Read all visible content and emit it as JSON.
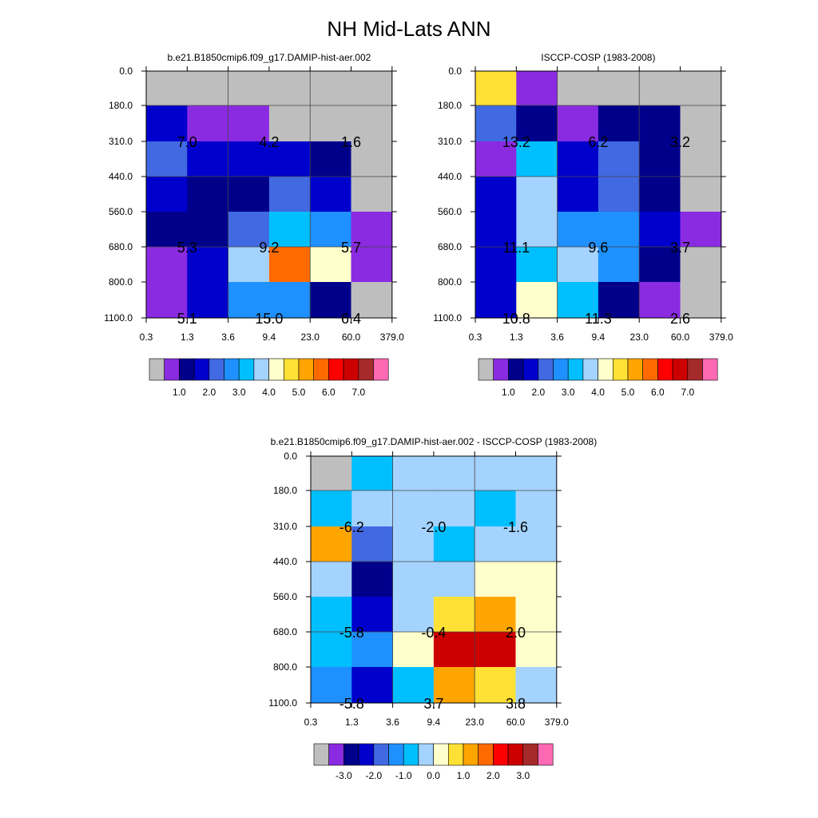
{
  "figure": {
    "title": "NH Mid-Lats ANN"
  },
  "chart_data": [
    {
      "type": "heatmap",
      "title": "b.e21.B1850cmip6.f09_g17.DAMIP-hist-aer.002",
      "x_ticks": [
        "0.3",
        "1.3",
        "3.6",
        "9.4",
        "23.0",
        "60.0",
        "379.0"
      ],
      "y_ticks": [
        "0.0",
        "180.0",
        "310.0",
        "440.0",
        "560.0",
        "680.0",
        "800.0",
        "1100.0"
      ],
      "cells": [
        [
          "#bebebe",
          "#bebebe",
          "#bebebe",
          "#bebebe",
          "#bebebe",
          "#bebebe"
        ],
        [
          "#0000cd",
          "#8a2be2",
          "#8a2be2",
          "#bebebe",
          "#bebebe",
          "#bebebe"
        ],
        [
          "#4169e1",
          "#0000cd",
          "#0000cd",
          "#0000cd",
          "#00008b",
          "#bebebe"
        ],
        [
          "#0000cd",
          "#00008b",
          "#00008b",
          "#4169e1",
          "#0000cd",
          "#bebebe"
        ],
        [
          "#00008b",
          "#00008b",
          "#4169e1",
          "#00bfff",
          "#1e90ff",
          "#8a2be2"
        ],
        [
          "#8a2be2",
          "#0000cd",
          "#a4d3ff",
          "#ff6a00",
          "#ffffcc",
          "#8a2be2"
        ],
        [
          "#8a2be2",
          "#0000cd",
          "#1e90ff",
          "#1e90ff",
          "#00008b",
          "#bebebe"
        ]
      ],
      "box_labels": [
        {
          "text": "7.0",
          "col": 0,
          "row": 1
        },
        {
          "text": "4.2",
          "col": 2,
          "row": 1
        },
        {
          "text": "1.6",
          "col": 4,
          "row": 1
        },
        {
          "text": "5.3",
          "col": 0,
          "row": 4
        },
        {
          "text": "9.2",
          "col": 2,
          "row": 4
        },
        {
          "text": "5.7",
          "col": 4,
          "row": 4
        },
        {
          "text": "5.1",
          "col": 0,
          "row": 6
        },
        {
          "text": "15.0",
          "col": 2,
          "row": 6
        },
        {
          "text": "6.4",
          "col": 4,
          "row": 6
        }
      ],
      "colorbar": {
        "colors": [
          "#bebebe",
          "#8a2be2",
          "#00008b",
          "#0000cd",
          "#4169e1",
          "#1e90ff",
          "#00bfff",
          "#a4d3ff",
          "#ffffcc",
          "#ffe135",
          "#ffa500",
          "#ff6a00",
          "#ff0000",
          "#cc0000",
          "#a52a2a",
          "#ff69b4"
        ],
        "labels": [
          "1.0",
          "2.0",
          "3.0",
          "4.0",
          "5.0",
          "6.0",
          "7.0"
        ],
        "label_boundaries": [
          2,
          4,
          6,
          8,
          10,
          12,
          14
        ]
      }
    },
    {
      "type": "heatmap",
      "title": "ISCCP-COSP (1983-2008)",
      "x_ticks": [
        "0.3",
        "1.3",
        "3.6",
        "9.4",
        "23.0",
        "60.0",
        "379.0"
      ],
      "y_ticks": [
        "0.0",
        "180.0",
        "310.0",
        "440.0",
        "560.0",
        "680.0",
        "800.0",
        "1100.0"
      ],
      "cells": [
        [
          "#ffe135",
          "#8a2be2",
          "#bebebe",
          "#bebebe",
          "#bebebe",
          "#bebebe"
        ],
        [
          "#4169e1",
          "#00008b",
          "#8a2be2",
          "#00008b",
          "#00008b",
          "#bebebe"
        ],
        [
          "#8a2be2",
          "#00bfff",
          "#0000cd",
          "#4169e1",
          "#00008b",
          "#bebebe"
        ],
        [
          "#0000cd",
          "#a4d3ff",
          "#0000cd",
          "#4169e1",
          "#00008b",
          "#bebebe"
        ],
        [
          "#0000cd",
          "#a4d3ff",
          "#1e90ff",
          "#1e90ff",
          "#0000cd",
          "#8a2be2"
        ],
        [
          "#0000cd",
          "#00bfff",
          "#a4d3ff",
          "#1e90ff",
          "#00008b",
          "#bebebe"
        ],
        [
          "#0000cd",
          "#ffffcc",
          "#00bfff",
          "#00008b",
          "#8a2be2",
          "#bebebe"
        ]
      ],
      "box_labels": [
        {
          "text": "13.2",
          "col": 0,
          "row": 1
        },
        {
          "text": "6.2",
          "col": 2,
          "row": 1
        },
        {
          "text": "3.2",
          "col": 4,
          "row": 1
        },
        {
          "text": "11.1",
          "col": 0,
          "row": 4
        },
        {
          "text": "9.6",
          "col": 2,
          "row": 4
        },
        {
          "text": "3.7",
          "col": 4,
          "row": 4
        },
        {
          "text": "10.8",
          "col": 0,
          "row": 6
        },
        {
          "text": "11.3",
          "col": 2,
          "row": 6
        },
        {
          "text": "2.6",
          "col": 4,
          "row": 6
        }
      ],
      "colorbar": {
        "colors": [
          "#bebebe",
          "#8a2be2",
          "#00008b",
          "#0000cd",
          "#4169e1",
          "#1e90ff",
          "#00bfff",
          "#a4d3ff",
          "#ffffcc",
          "#ffe135",
          "#ffa500",
          "#ff6a00",
          "#ff0000",
          "#cc0000",
          "#a52a2a",
          "#ff69b4"
        ],
        "labels": [
          "1.0",
          "2.0",
          "3.0",
          "4.0",
          "5.0",
          "6.0",
          "7.0"
        ],
        "label_boundaries": [
          2,
          4,
          6,
          8,
          10,
          12,
          14
        ]
      }
    },
    {
      "type": "heatmap",
      "title": "b.e21.B1850cmip6.f09_g17.DAMIP-hist-aer.002 - ISCCP-COSP (1983-2008)",
      "x_ticks": [
        "0.3",
        "1.3",
        "3.6",
        "9.4",
        "23.0",
        "60.0",
        "379.0"
      ],
      "y_ticks": [
        "0.0",
        "180.0",
        "310.0",
        "440.0",
        "560.0",
        "680.0",
        "800.0",
        "1100.0"
      ],
      "cells": [
        [
          "#bebebe",
          "#00bfff",
          "#a4d3ff",
          "#a4d3ff",
          "#a4d3ff",
          "#a4d3ff"
        ],
        [
          "#00bfff",
          "#a4d3ff",
          "#a4d3ff",
          "#a4d3ff",
          "#00bfff",
          "#a4d3ff"
        ],
        [
          "#ffa500",
          "#4169e1",
          "#a4d3ff",
          "#00bfff",
          "#a4d3ff",
          "#a4d3ff"
        ],
        [
          "#a4d3ff",
          "#00008b",
          "#a4d3ff",
          "#a4d3ff",
          "#ffffcc",
          "#ffffcc"
        ],
        [
          "#00bfff",
          "#0000cd",
          "#a4d3ff",
          "#ffe135",
          "#ffa500",
          "#ffffcc"
        ],
        [
          "#00bfff",
          "#1e90ff",
          "#ffffcc",
          "#cc0000",
          "#cc0000",
          "#ffffcc"
        ],
        [
          "#1e90ff",
          "#0000cd",
          "#00bfff",
          "#ffa500",
          "#ffe135",
          "#a4d3ff"
        ]
      ],
      "box_labels": [
        {
          "text": "-6.2",
          "col": 0,
          "row": 1
        },
        {
          "text": "-2.0",
          "col": 2,
          "row": 1
        },
        {
          "text": "-1.6",
          "col": 4,
          "row": 1
        },
        {
          "text": "-5.8",
          "col": 0,
          "row": 4
        },
        {
          "text": "-0.4",
          "col": 2,
          "row": 4
        },
        {
          "text": "2.0",
          "col": 4,
          "row": 4
        },
        {
          "text": "-5.8",
          "col": 0,
          "row": 6
        },
        {
          "text": "3.7",
          "col": 2,
          "row": 6
        },
        {
          "text": "3.8",
          "col": 4,
          "row": 6
        }
      ],
      "colorbar": {
        "colors": [
          "#bebebe",
          "#8a2be2",
          "#00008b",
          "#0000cd",
          "#4169e1",
          "#1e90ff",
          "#00bfff",
          "#a4d3ff",
          "#ffffcc",
          "#ffe135",
          "#ffa500",
          "#ff6a00",
          "#ff0000",
          "#cc0000",
          "#a52a2a",
          "#ff69b4"
        ],
        "labels": [
          "-3.0",
          "-2.0",
          "-1.0",
          "0.0",
          "1.0",
          "2.0",
          "3.0"
        ],
        "label_boundaries": [
          2,
          4,
          6,
          8,
          10,
          12,
          14
        ]
      }
    }
  ]
}
